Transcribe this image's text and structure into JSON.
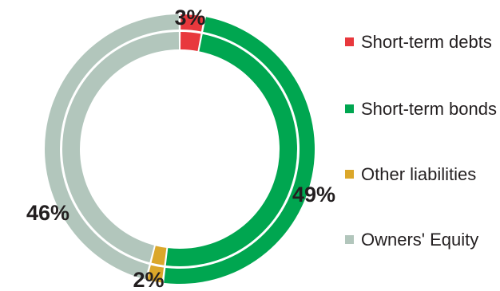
{
  "chart_data": {
    "type": "pie",
    "style": "double-ring donut",
    "title": "",
    "legend_position": "right",
    "series": [
      {
        "categories": [
          "Short-term debts",
          "Short-term bonds",
          "Other liabilities",
          "Owners' Equity"
        ],
        "values": [
          3,
          49,
          2,
          46
        ],
        "value_labels": [
          "3%",
          "49%",
          "2%",
          "46%"
        ],
        "colors": [
          "#e8383d",
          "#00a650",
          "#dba72a",
          "#b2c6bc"
        ]
      }
    ]
  },
  "legend": [
    {
      "label": "Short-term debts",
      "color": "#e8383d"
    },
    {
      "label": "Short-term bonds",
      "color": "#00a650"
    },
    {
      "label": "Other liabilities",
      "color": "#dba72a"
    },
    {
      "label": "Owners' Equity",
      "color": "#b2c6bc"
    }
  ]
}
